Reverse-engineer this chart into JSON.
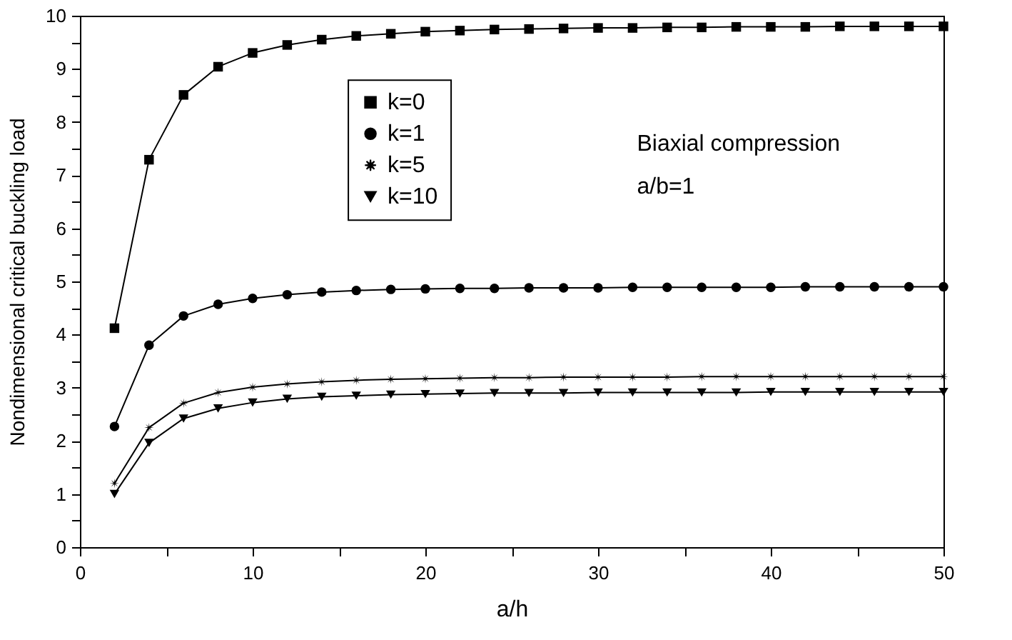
{
  "chart_data": {
    "type": "line",
    "xlabel": "a/h",
    "ylabel": "Nondimensional critical buckling load",
    "x": [
      2,
      4,
      6,
      8,
      10,
      12,
      14,
      16,
      18,
      20,
      22,
      24,
      26,
      28,
      30,
      32,
      34,
      36,
      38,
      40,
      42,
      44,
      46,
      48,
      50
    ],
    "series": [
      {
        "name": "k=0",
        "color": "#000000",
        "marker": "square",
        "values": [
          4.12,
          7.29,
          8.51,
          9.04,
          9.3,
          9.45,
          9.55,
          9.62,
          9.66,
          9.7,
          9.72,
          9.74,
          9.75,
          9.76,
          9.77,
          9.77,
          9.78,
          9.78,
          9.79,
          9.79,
          9.79,
          9.8,
          9.8,
          9.8,
          9.8
        ]
      },
      {
        "name": "k=1",
        "color": "#000000",
        "marker": "circle",
        "values": [
          2.27,
          3.8,
          4.35,
          4.57,
          4.68,
          4.75,
          4.8,
          4.83,
          4.85,
          4.86,
          4.87,
          4.87,
          4.88,
          4.88,
          4.88,
          4.89,
          4.89,
          4.89,
          4.89,
          4.89,
          4.9,
          4.9,
          4.9,
          4.9,
          4.9
        ]
      },
      {
        "name": "k=5",
        "color": "#000000",
        "marker": "star",
        "values": [
          1.2,
          2.25,
          2.71,
          2.91,
          3.01,
          3.07,
          3.11,
          3.14,
          3.16,
          3.17,
          3.18,
          3.19,
          3.19,
          3.2,
          3.2,
          3.2,
          3.2,
          3.21,
          3.21,
          3.21,
          3.21,
          3.21,
          3.21,
          3.21,
          3.21
        ]
      },
      {
        "name": "k=10",
        "color": "#000000",
        "marker": "triangle",
        "values": [
          1.0,
          1.96,
          2.42,
          2.61,
          2.72,
          2.79,
          2.83,
          2.85,
          2.87,
          2.88,
          2.89,
          2.9,
          2.9,
          2.9,
          2.91,
          2.91,
          2.91,
          2.91,
          2.91,
          2.92,
          2.92,
          2.92,
          2.92,
          2.92,
          2.92
        ]
      }
    ],
    "xlim": [
      0,
      50
    ],
    "xticks": [
      0,
      {
        "value": 5,
        "label": null
      },
      10,
      {
        "value": 15,
        "label": null
      },
      20,
      {
        "value": 25,
        "label": null
      },
      30,
      {
        "value": 35,
        "label": null
      },
      40,
      {
        "value": 45,
        "label": null
      },
      50
    ],
    "ylim": [
      0,
      10
    ],
    "yticks": [
      0,
      {
        "value": 0.5,
        "label": null
      },
      1,
      {
        "value": 1.5,
        "label": null
      },
      2,
      {
        "value": 2.5,
        "label": null
      },
      3,
      {
        "value": 3.5,
        "label": null
      },
      4,
      {
        "value": 4.5,
        "label": null
      },
      5,
      {
        "value": 5.5,
        "label": null
      },
      6,
      {
        "value": 6.5,
        "label": null
      },
      7,
      {
        "value": 7.5,
        "label": null
      },
      8,
      {
        "value": 8.5,
        "label": null
      },
      9,
      {
        "value": 9.5,
        "label": null
      },
      10
    ],
    "annotations": [
      "Biaxial compression",
      "a/b=1"
    ],
    "legend": "top",
    "grid": false,
    "line_style": "solid"
  }
}
